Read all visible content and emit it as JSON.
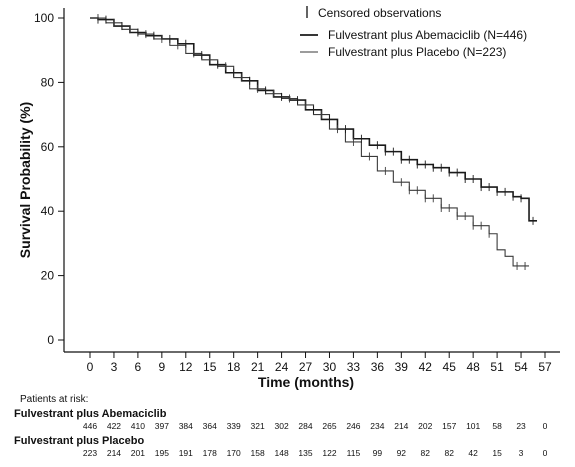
{
  "chart_data": {
    "type": "line",
    "title": "",
    "xlabel": "Time (months)",
    "ylabel": "Survival Probability (%)",
    "xlim": [
      0,
      57
    ],
    "ylim": [
      0,
      100
    ],
    "x_ticks": [
      0,
      3,
      6,
      9,
      12,
      15,
      18,
      21,
      24,
      27,
      30,
      33,
      36,
      39,
      42,
      45,
      48,
      51,
      54,
      57
    ],
    "y_ticks": [
      0,
      20,
      40,
      60,
      80,
      100
    ],
    "legend_position": "top-right",
    "legend": {
      "censored_label": "Censored observations"
    },
    "series": [
      {
        "name": "Fulvestrant plus Abemaciclib (N=446)",
        "color": "#1a1a1a",
        "x": [
          0,
          1,
          3,
          5,
          7,
          9,
          11,
          13,
          15,
          17,
          19,
          21,
          23,
          25,
          27,
          29,
          31,
          33,
          35,
          37,
          39,
          41,
          43,
          45,
          47,
          49,
          51,
          53,
          54,
          55,
          55,
          56
        ],
        "y": [
          100,
          99.5,
          97.5,
          95.5,
          94.5,
          93.5,
          92,
          88.5,
          85.5,
          83,
          80.5,
          77.5,
          75.5,
          74.5,
          71.5,
          68.5,
          65.5,
          62.5,
          60.5,
          58.5,
          56,
          54.5,
          53.5,
          52,
          50,
          47.5,
          46,
          44.5,
          44,
          44,
          37,
          37
        ],
        "censored_x": [
          1,
          2,
          4,
          6,
          8,
          10,
          12,
          14,
          16,
          18,
          20,
          22,
          24,
          26,
          28,
          30,
          32,
          34,
          36,
          37,
          38,
          39,
          40,
          41,
          42,
          43,
          44,
          45,
          46,
          47,
          48,
          49,
          50,
          51,
          52,
          53,
          54,
          55.5
        ]
      },
      {
        "name": "Fulvestrant plus Placebo (N=223)",
        "color": "#3a3a3a",
        "x": [
          0,
          2,
          4,
          6,
          8,
          10,
          12,
          14,
          16,
          18,
          20,
          22,
          24,
          26,
          28,
          30,
          32,
          34,
          36,
          38,
          40,
          42,
          44,
          46,
          48,
          50,
          51,
          52,
          53,
          53,
          55
        ],
        "y": [
          100,
          98.5,
          96.5,
          95,
          93.5,
          91.5,
          89,
          87,
          85,
          81.5,
          78,
          76.5,
          75,
          73,
          70,
          65.5,
          61.5,
          57,
          52.5,
          49,
          46.5,
          44,
          41,
          38.5,
          35.5,
          33,
          28,
          26,
          26,
          23,
          23
        ],
        "censored_x": [
          1,
          3,
          5,
          7,
          9,
          11,
          13,
          15,
          17,
          19,
          21,
          23,
          25,
          27,
          29,
          31,
          33,
          35,
          37,
          39,
          40,
          41,
          42,
          43,
          44,
          45,
          46,
          47,
          48,
          49,
          50,
          53.5,
          54.5
        ]
      }
    ],
    "risk_table": {
      "title": "Patients at risk:",
      "times": [
        0,
        3,
        6,
        9,
        12,
        15,
        18,
        21,
        24,
        27,
        30,
        33,
        36,
        39,
        42,
        45,
        48,
        51,
        54,
        57
      ],
      "rows": [
        {
          "label": "Fulvestrant plus Abemaciclib",
          "values": [
            "446",
            "422",
            "410",
            "397",
            "384",
            "364",
            "339",
            "321",
            "302",
            "284",
            "265",
            "246",
            "234",
            "214",
            "202",
            "157",
            "101",
            "58",
            "23",
            "0"
          ]
        },
        {
          "label": "Fulvestrant plus Placebo",
          "values": [
            "223",
            "214",
            "201",
            "195",
            "191",
            "178",
            "170",
            "158",
            "148",
            "135",
            "122",
            "115",
            "99",
            "92",
            "82",
            "82",
            "42",
            "15",
            "3",
            "0"
          ]
        }
      ]
    }
  }
}
